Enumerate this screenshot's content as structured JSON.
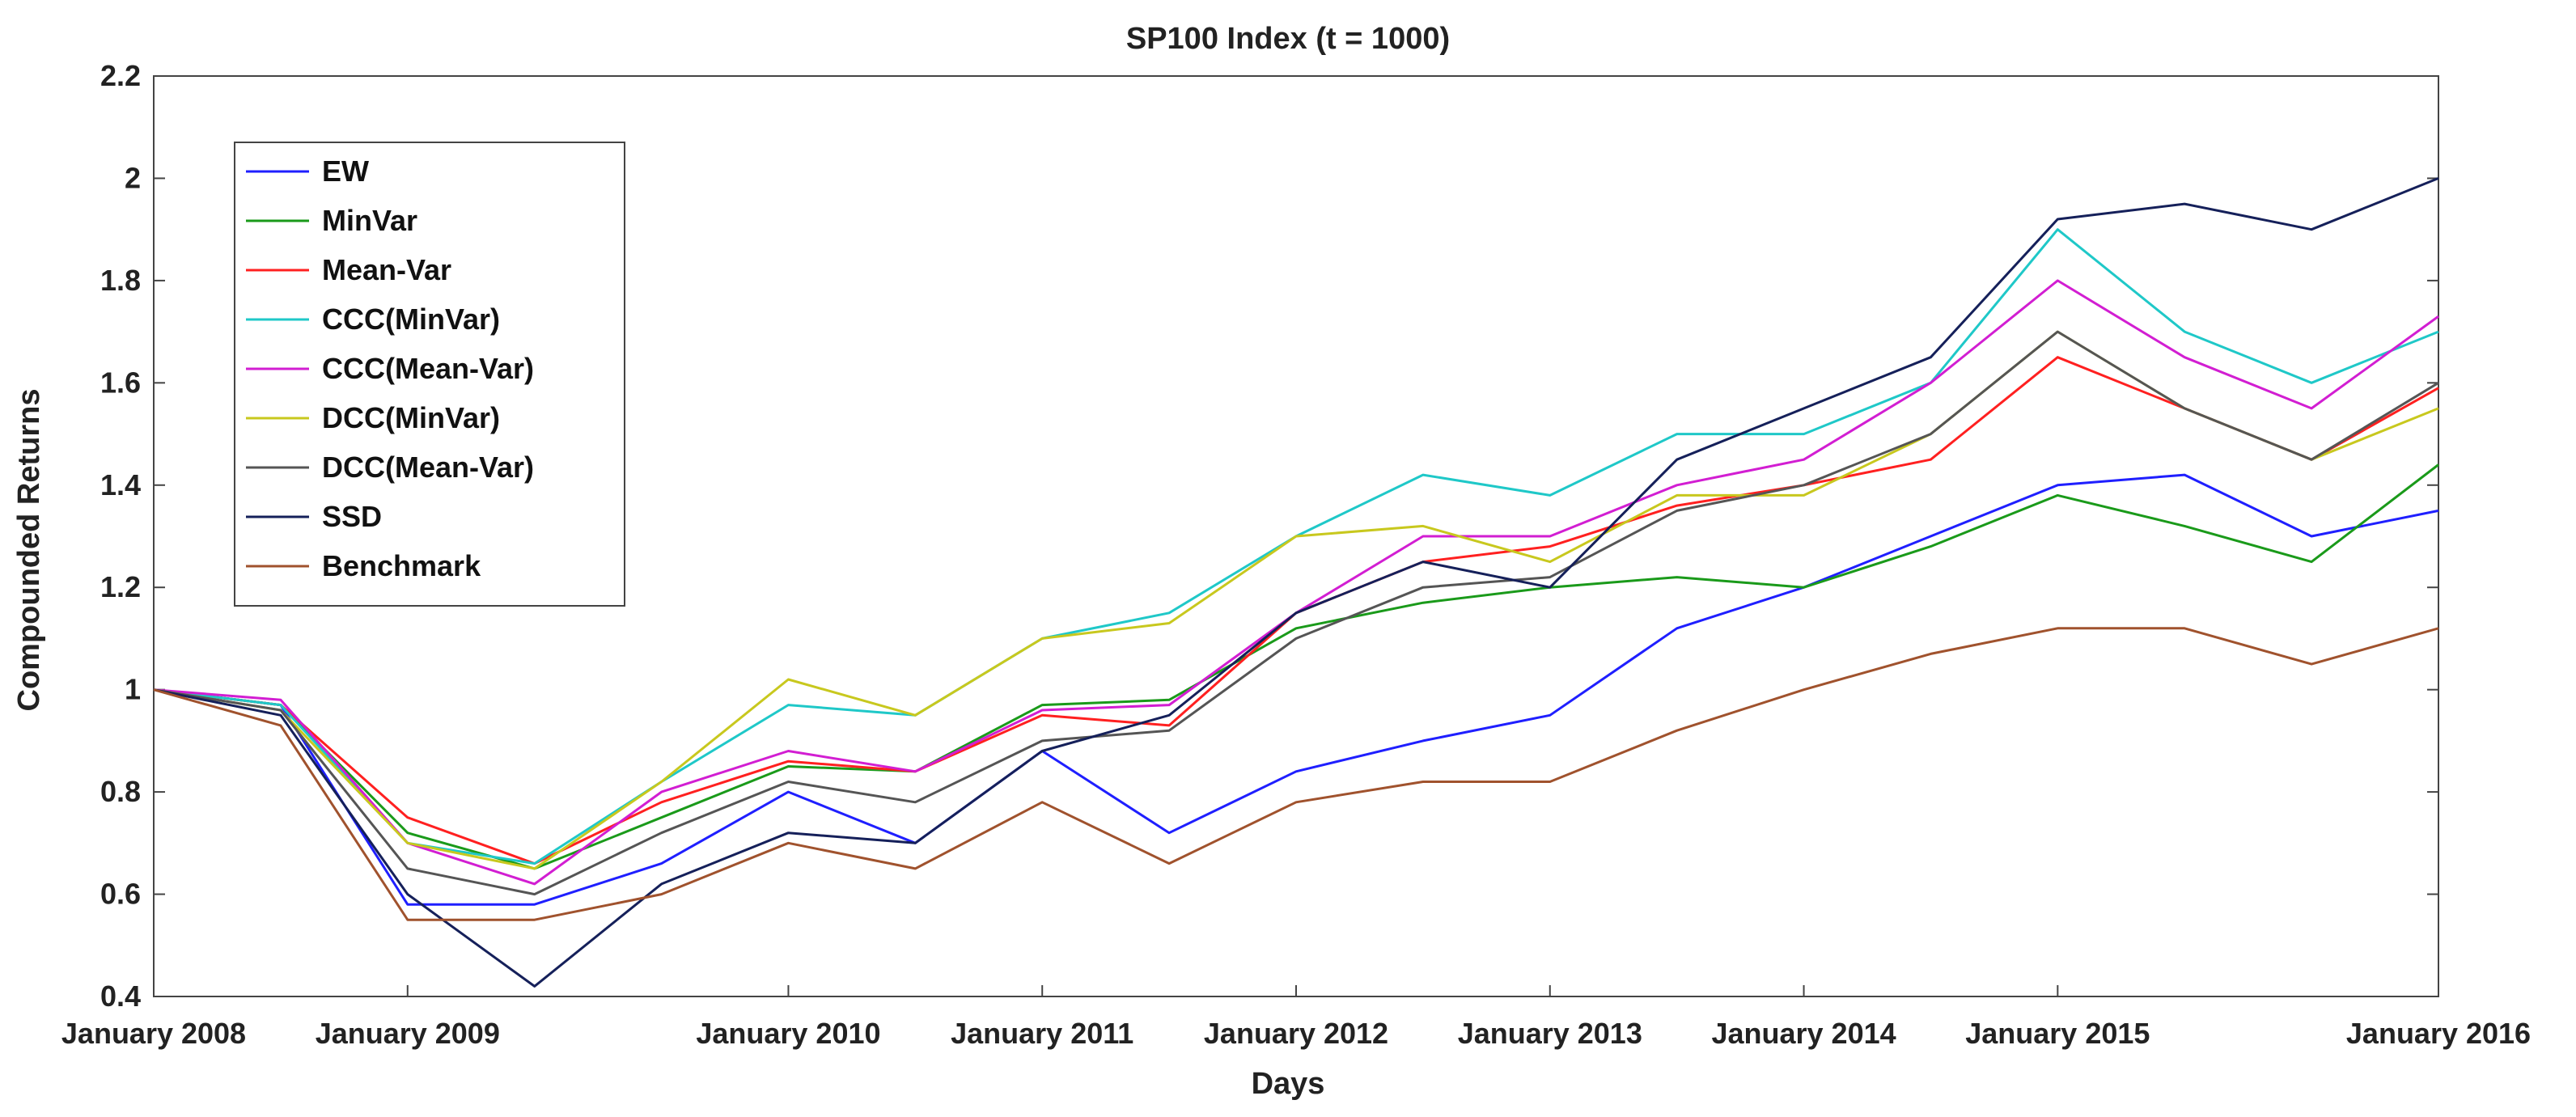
{
  "chart_data": {
    "type": "line",
    "title": "SP100 Index (t = 1000)",
    "xlabel": "Days",
    "ylabel": "Compounded Returns",
    "x": [
      "January 2008",
      "July 2008",
      "January 2009",
      "March 2009",
      "July 2009",
      "January 2010",
      "July 2010",
      "January 2011",
      "August 2011",
      "January 2012",
      "July 2012",
      "January 2013",
      "July 2013",
      "January 2014",
      "July 2014",
      "January 2015",
      "July 2015",
      "September 2015",
      "January 2016"
    ],
    "x_ticks": [
      "January 2008",
      "January 2009",
      "January 2010",
      "January 2011",
      "January 2012",
      "January 2013",
      "January 2014",
      "January 2015",
      "January 2016"
    ],
    "ylim": [
      0.4,
      2.2
    ],
    "y_ticks": [
      "0.4",
      "0.6",
      "0.8",
      "1",
      "1.2",
      "1.4",
      "1.6",
      "1.8",
      "2",
      "2.2"
    ],
    "grid": false,
    "legend_position": "top-left",
    "series": [
      {
        "name": "EW",
        "color": "#1f1fff",
        "values": [
          1.0,
          0.97,
          0.58,
          0.58,
          0.66,
          0.8,
          0.7,
          0.88,
          0.72,
          0.84,
          0.9,
          0.95,
          1.12,
          1.2,
          1.3,
          1.4,
          1.42,
          1.3,
          1.35
        ]
      },
      {
        "name": "MinVar",
        "color": "#1a9a1a",
        "values": [
          1.0,
          0.97,
          0.72,
          0.65,
          0.75,
          0.85,
          0.84,
          0.97,
          0.98,
          1.12,
          1.17,
          1.2,
          1.22,
          1.2,
          1.28,
          1.38,
          1.32,
          1.25,
          1.44
        ]
      },
      {
        "name": "Mean-Var",
        "color": "#ff2020",
        "values": [
          1.0,
          0.97,
          0.75,
          0.66,
          0.78,
          0.86,
          0.84,
          0.95,
          0.93,
          1.15,
          1.25,
          1.28,
          1.36,
          1.4,
          1.45,
          1.65,
          1.55,
          1.45,
          1.59
        ]
      },
      {
        "name": "CCC(MinVar)",
        "color": "#1fc8c8",
        "values": [
          1.0,
          0.97,
          0.7,
          0.66,
          0.82,
          0.97,
          0.95,
          1.1,
          1.15,
          1.3,
          1.42,
          1.38,
          1.5,
          1.5,
          1.6,
          1.9,
          1.7,
          1.6,
          1.7
        ]
      },
      {
        "name": "CCC(Mean-Var)",
        "color": "#d21ed2",
        "values": [
          1.0,
          0.98,
          0.7,
          0.62,
          0.8,
          0.88,
          0.84,
          0.96,
          0.97,
          1.15,
          1.3,
          1.3,
          1.4,
          1.45,
          1.6,
          1.8,
          1.65,
          1.55,
          1.73
        ]
      },
      {
        "name": "DCC(MinVar)",
        "color": "#c8c81e",
        "values": [
          1.0,
          0.96,
          0.7,
          0.65,
          0.82,
          1.02,
          0.95,
          1.1,
          1.13,
          1.3,
          1.32,
          1.25,
          1.38,
          1.38,
          1.5,
          1.7,
          1.55,
          1.45,
          1.55
        ]
      },
      {
        "name": "DCC(Mean-Var)",
        "color": "#555555",
        "values": [
          1.0,
          0.96,
          0.65,
          0.6,
          0.72,
          0.82,
          0.78,
          0.9,
          0.92,
          1.1,
          1.2,
          1.22,
          1.35,
          1.4,
          1.5,
          1.7,
          1.55,
          1.45,
          1.6
        ]
      },
      {
        "name": "SSD",
        "color": "#15205a",
        "values": [
          1.0,
          0.95,
          0.6,
          0.42,
          0.62,
          0.72,
          0.7,
          0.88,
          0.95,
          1.15,
          1.25,
          1.2,
          1.45,
          1.55,
          1.65,
          1.92,
          1.95,
          1.9,
          2.0
        ]
      },
      {
        "name": "Benchmark",
        "color": "#a0522d",
        "values": [
          1.0,
          0.93,
          0.55,
          0.55,
          0.6,
          0.7,
          0.65,
          0.78,
          0.66,
          0.78,
          0.82,
          0.82,
          0.92,
          1.0,
          1.07,
          1.12,
          1.12,
          1.05,
          1.12
        ]
      }
    ]
  }
}
